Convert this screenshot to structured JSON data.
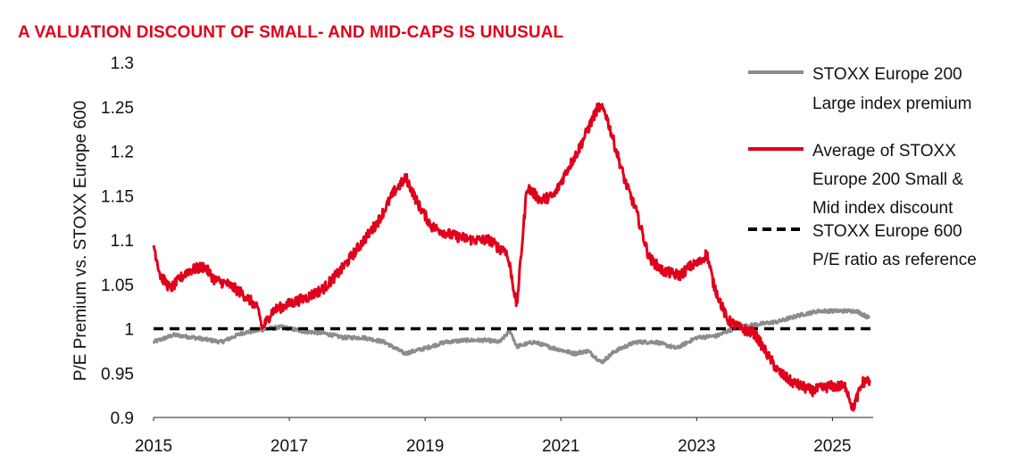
{
  "chart_data": {
    "type": "line",
    "title": "A VALUATION DISCOUNT OF SMALL- AND MID-CAPS IS UNUSUAL",
    "xlabel": "",
    "ylabel": "P/E Premium vs. STOXX Europe 600",
    "xlim": [
      2015,
      2025.6
    ],
    "ylim": [
      0.9,
      1.3
    ],
    "x_ticks": [
      "2015",
      "2017",
      "2019",
      "2021",
      "2023",
      "2025"
    ],
    "y_ticks": [
      "0.9",
      "0.95",
      "1",
      "1.05",
      "1.1",
      "1.15",
      "1.2",
      "1.25",
      "1.3"
    ],
    "legend_position": "right",
    "series": [
      {
        "name": "STOXX Europe 200 Large index premium",
        "legend_lines": [
          "STOXX Europe 200",
          "Large index premium"
        ],
        "color": "#8c8c8c",
        "style": "solid",
        "x": [
          2015.0,
          2015.3,
          2015.6,
          2016.0,
          2016.3,
          2016.6,
          2016.9,
          2017.2,
          2017.5,
          2017.8,
          2018.1,
          2018.4,
          2018.7,
          2019.0,
          2019.3,
          2019.6,
          2019.9,
          2020.1,
          2020.25,
          2020.35,
          2020.6,
          2020.9,
          2021.2,
          2021.4,
          2021.6,
          2021.8,
          2022.1,
          2022.4,
          2022.7,
          2023.0,
          2023.3,
          2023.6,
          2023.9,
          2024.2,
          2024.5,
          2024.8,
          2025.1,
          2025.35,
          2025.55
        ],
        "values": [
          0.985,
          0.993,
          0.99,
          0.985,
          0.995,
          0.999,
          1.002,
          0.997,
          0.995,
          0.99,
          0.99,
          0.985,
          0.972,
          0.978,
          0.985,
          0.987,
          0.987,
          0.985,
          0.998,
          0.98,
          0.985,
          0.978,
          0.972,
          0.975,
          0.962,
          0.975,
          0.985,
          0.985,
          0.978,
          0.99,
          0.992,
          1.002,
          1.005,
          1.008,
          1.015,
          1.02,
          1.02,
          1.02,
          1.012
        ]
      },
      {
        "name": "Average of STOXX Europe 200 Small & Mid index discount",
        "legend_lines": [
          "Average of STOXX",
          "Europe 200 Small &",
          "Mid index discount"
        ],
        "color": "#e0001b",
        "style": "solid",
        "x": [
          2015.0,
          2015.1,
          2015.25,
          2015.5,
          2015.75,
          2015.9,
          2016.1,
          2016.3,
          2016.45,
          2016.55,
          2016.6,
          2016.75,
          2017.0,
          2017.25,
          2017.5,
          2017.75,
          2018.0,
          2018.3,
          2018.55,
          2018.72,
          2018.9,
          2019.1,
          2019.4,
          2019.7,
          2019.95,
          2020.1,
          2020.18,
          2020.25,
          2020.35,
          2020.5,
          2020.7,
          2020.9,
          2021.1,
          2021.25,
          2021.4,
          2021.55,
          2021.65,
          2021.8,
          2021.95,
          2022.1,
          2022.3,
          2022.5,
          2022.75,
          2022.9,
          2023.05,
          2023.15,
          2023.25,
          2023.45,
          2023.65,
          2023.85,
          2024.05,
          2024.2,
          2024.4,
          2024.7,
          2024.95,
          2025.2,
          2025.3,
          2025.45,
          2025.55
        ],
        "values": [
          1.095,
          1.06,
          1.045,
          1.065,
          1.07,
          1.055,
          1.05,
          1.04,
          1.03,
          1.02,
          1.0,
          1.02,
          1.028,
          1.035,
          1.045,
          1.065,
          1.09,
          1.12,
          1.155,
          1.17,
          1.14,
          1.115,
          1.105,
          1.1,
          1.1,
          1.09,
          1.09,
          1.07,
          1.025,
          1.16,
          1.145,
          1.15,
          1.18,
          1.2,
          1.225,
          1.25,
          1.245,
          1.205,
          1.165,
          1.135,
          1.08,
          1.065,
          1.06,
          1.07,
          1.075,
          1.085,
          1.05,
          1.01,
          1.0,
          0.995,
          0.97,
          0.952,
          0.94,
          0.93,
          0.935,
          0.935,
          0.91,
          0.94,
          0.942
        ]
      },
      {
        "name": "STOXX Europe 600 P/E ratio as reference",
        "legend_lines": [
          "STOXX Europe 600",
          "P/E ratio as reference"
        ],
        "color": "#000000",
        "style": "dashed",
        "x": [
          2015.0,
          2025.6
        ],
        "values": [
          1.0,
          1.0
        ]
      }
    ]
  }
}
